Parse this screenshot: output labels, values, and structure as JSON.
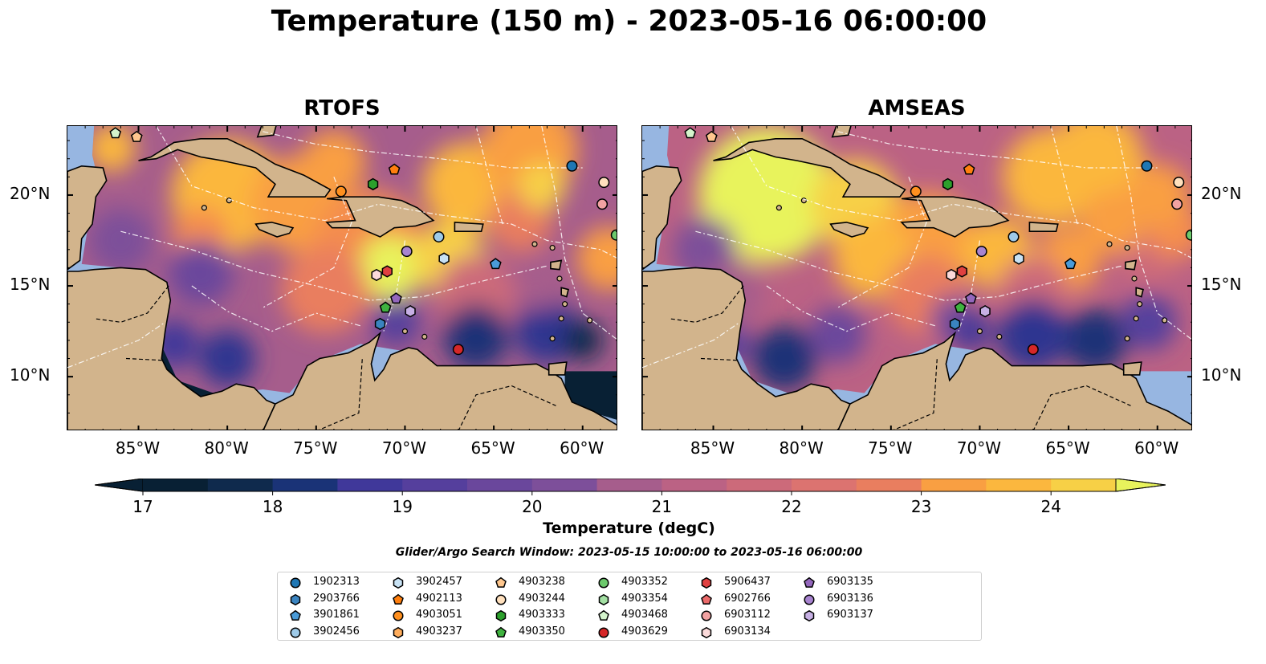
{
  "title": "Temperature (150 m) - 2023-05-16 06:00:00",
  "panels": [
    {
      "title": "RTOFS",
      "variant": "rtofs"
    },
    {
      "title": "AMSEAS",
      "variant": "amseas"
    }
  ],
  "map_extent": {
    "lon": [
      -89,
      -58
    ],
    "lat": [
      7,
      23.8
    ]
  },
  "lat_ticks": [
    {
      "label": "20°N",
      "value": 20
    },
    {
      "label": "15°N",
      "value": 15
    },
    {
      "label": "10°N",
      "value": 10
    }
  ],
  "lon_ticks": [
    {
      "label": "85°W",
      "value": -85
    },
    {
      "label": "80°W",
      "value": -80
    },
    {
      "label": "75°W",
      "value": -75
    },
    {
      "label": "70°W",
      "value": -70
    },
    {
      "label": "65°W",
      "value": -65
    },
    {
      "label": "60°W",
      "value": -60
    }
  ],
  "colorbar": {
    "label": "Temperature (degC)",
    "min": 16.75,
    "max": 24.5,
    "ticks": [
      "17",
      "18",
      "19",
      "20",
      "21",
      "22",
      "23",
      "24"
    ],
    "tick_values": [
      17,
      18,
      19,
      20,
      21,
      22,
      23,
      24
    ],
    "colors": [
      "#082034",
      "#0f2a4d",
      "#1a3377",
      "#2d3590",
      "#40389a",
      "#553f9d",
      "#6a479c",
      "#7d4f9a",
      "#925794",
      "#a65d8c",
      "#bb6284",
      "#cc6a7a",
      "#dc7370",
      "#e97e5f",
      "#f48d4e",
      "#f99f42",
      "#fbb73e",
      "#f7d046",
      "#e8f35c"
    ],
    "extend": "both"
  },
  "window_text": "Glider/Argo Search Window: 2023-05-15 10:00:00 to 2023-05-16 06:00:00",
  "colors": {
    "land": "#d2b48c",
    "ocean": "#97b6e1",
    "deep": "#082034"
  },
  "legend": [
    {
      "id": "1902313",
      "marker": "circle",
      "color": "#1f77b4"
    },
    {
      "id": "2903766",
      "marker": "hexagon",
      "color": "#3a84c0"
    },
    {
      "id": "3901861",
      "marker": "pentagon",
      "color": "#4a9bd8"
    },
    {
      "id": "3902456",
      "marker": "circle",
      "color": "#9ecae8"
    },
    {
      "id": "3902457",
      "marker": "hexagon",
      "color": "#c8e2f4"
    },
    {
      "id": "4902113",
      "marker": "pentagon",
      "color": "#ff7f0e"
    },
    {
      "id": "4903051",
      "marker": "circle",
      "color": "#ff901f"
    },
    {
      "id": "4903237",
      "marker": "hexagon",
      "color": "#ffad5c"
    },
    {
      "id": "4903238",
      "marker": "pentagon",
      "color": "#ffc78e"
    },
    {
      "id": "4903244",
      "marker": "circle",
      "color": "#ffe0bd"
    },
    {
      "id": "4903333",
      "marker": "hexagon",
      "color": "#2ca02c"
    },
    {
      "id": "4903350",
      "marker": "pentagon",
      "color": "#3fb23f"
    },
    {
      "id": "4903352",
      "marker": "circle",
      "color": "#6cc96c"
    },
    {
      "id": "4903354",
      "marker": "hexagon",
      "color": "#a3e0a3"
    },
    {
      "id": "4903468",
      "marker": "pentagon",
      "color": "#d4f4cc"
    },
    {
      "id": "4903629",
      "marker": "circle",
      "color": "#d62728"
    },
    {
      "id": "5906437",
      "marker": "hexagon",
      "color": "#e04040"
    },
    {
      "id": "6902766",
      "marker": "pentagon",
      "color": "#ec6a6a"
    },
    {
      "id": "6903112",
      "marker": "circle",
      "color": "#f2a2a2"
    },
    {
      "id": "6903134",
      "marker": "hexagon",
      "color": "#fbdada"
    },
    {
      "id": "6903135",
      "marker": "pentagon",
      "color": "#9467bd"
    },
    {
      "id": "6903136",
      "marker": "circle",
      "color": "#a884d0"
    },
    {
      "id": "6903137",
      "marker": "hexagon",
      "color": "#c7b0e4"
    }
  ],
  "floats": [
    {
      "id": "1902313",
      "lon": -60.6,
      "lat": 21.6
    },
    {
      "id": "3902456",
      "lon": -68.1,
      "lat": 17.7
    },
    {
      "id": "3902457",
      "lon": -67.8,
      "lat": 16.5
    },
    {
      "id": "3901861",
      "lon": -64.9,
      "lat": 16.2
    },
    {
      "id": "2903766",
      "lon": -71.4,
      "lat": 12.9
    },
    {
      "id": "4902113",
      "lon": -70.6,
      "lat": 21.4
    },
    {
      "id": "4903051",
      "lon": -73.6,
      "lat": 20.2
    },
    {
      "id": "4903238",
      "lon": -85.1,
      "lat": 23.2
    },
    {
      "id": "4903244",
      "lon": -58.8,
      "lat": 20.7
    },
    {
      "id": "4903333",
      "lon": -71.8,
      "lat": 20.6
    },
    {
      "id": "4903350",
      "lon": -71.1,
      "lat": 13.8
    },
    {
      "id": "4903352",
      "lon": -58.1,
      "lat": 17.8
    },
    {
      "id": "4903468",
      "lon": -86.3,
      "lat": 23.4
    },
    {
      "id": "4903629",
      "lon": -67.0,
      "lat": 11.5
    },
    {
      "id": "6903112",
      "lon": -58.9,
      "lat": 19.5
    },
    {
      "id": "6903134",
      "lon": -71.6,
      "lat": 15.6
    },
    {
      "id": "5906437",
      "lon": -71.0,
      "lat": 15.8
    },
    {
      "id": "6903135",
      "lon": -70.5,
      "lat": 14.3
    },
    {
      "id": "6903136",
      "lon": -69.9,
      "lat": 16.9
    },
    {
      "id": "6903137",
      "lon": -69.7,
      "lat": 13.6
    }
  ]
}
